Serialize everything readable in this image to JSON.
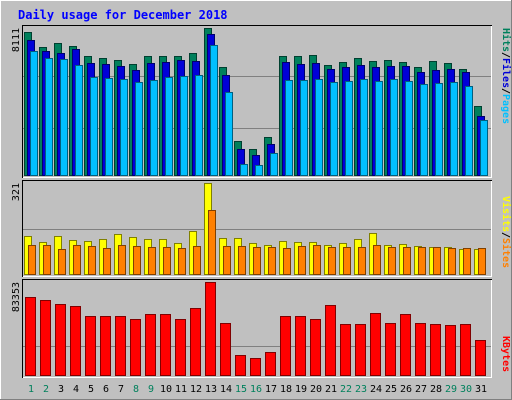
{
  "title": "Daily usage for December 2018",
  "colors": {
    "background": "#c0c0c0",
    "title": "#0000ff",
    "hits": "#00805c",
    "files": "#0000d8",
    "pages": "#00c0ff",
    "visits": "#ffff00",
    "sites": "#ff8000",
    "kbytes": "#ff0000",
    "weekday_label": "#000000",
    "weekend_label": "#00805c"
  },
  "chart_data": [
    {
      "type": "bar",
      "panel": "hits-files-pages",
      "categories": [
        "1",
        "2",
        "3",
        "4",
        "5",
        "6",
        "7",
        "8",
        "9",
        "10",
        "11",
        "12",
        "13",
        "14",
        "15",
        "16",
        "17",
        "18",
        "19",
        "20",
        "21",
        "22",
        "23",
        "24",
        "25",
        "26",
        "27",
        "28",
        "29",
        "30",
        "31"
      ],
      "weekend_days": [
        "1",
        "2",
        "8",
        "9",
        "15",
        "16",
        "22",
        "23",
        "29",
        "30"
      ],
      "ymax_label": "8111",
      "ylim": [
        0,
        8111
      ],
      "series": [
        {
          "name": "Hits",
          "values": [
            7900,
            7050,
            7300,
            7150,
            6600,
            6450,
            6350,
            6150,
            6550,
            6550,
            6600,
            6750,
            8111,
            5950,
            1900,
            1500,
            2150,
            6550,
            6550,
            6650,
            6100,
            6250,
            6450,
            6300,
            6350,
            6250,
            6000,
            6300,
            6200,
            5850,
            3850
          ]
        },
        {
          "name": "Files",
          "values": [
            7450,
            6850,
            6750,
            6950,
            6200,
            6150,
            6050,
            5800,
            6200,
            6250,
            6350,
            6300,
            7800,
            5550,
            1500,
            1150,
            1750,
            6250,
            6150,
            6200,
            5850,
            5950,
            6100,
            5950,
            6050,
            6050,
            5700,
            5800,
            5850,
            5700,
            3300
          ]
        },
        {
          "name": "Pages",
          "values": [
            6850,
            6450,
            6400,
            6100,
            5450,
            5350,
            5300,
            5150,
            5250,
            5400,
            5500,
            5550,
            7200,
            4600,
            650,
            600,
            1250,
            5250,
            5250,
            5300,
            5150,
            5200,
            5300,
            5200,
            5300,
            5200,
            5050,
            5100,
            5150,
            4950,
            3050
          ]
        }
      ]
    },
    {
      "type": "bar",
      "panel": "visits-sites",
      "categories": [
        "1",
        "2",
        "3",
        "4",
        "5",
        "6",
        "7",
        "8",
        "9",
        "10",
        "11",
        "12",
        "13",
        "14",
        "15",
        "16",
        "17",
        "18",
        "19",
        "20",
        "21",
        "22",
        "23",
        "24",
        "25",
        "26",
        "27",
        "28",
        "29",
        "30",
        "31"
      ],
      "ymax_label": "321",
      "ylim": [
        0,
        321
      ],
      "series": [
        {
          "name": "Visits",
          "values": [
            136,
            116,
            136,
            121,
            118,
            126,
            144,
            134,
            125,
            124,
            113,
            154,
            321,
            128,
            128,
            110,
            104,
            118,
            115,
            116,
            106,
            113,
            125,
            146,
            106,
            107,
            100,
            99,
            97,
            91,
            91
          ]
        },
        {
          "name": "Sites",
          "values": [
            104,
            103,
            91,
            103,
            102,
            95,
            105,
            102,
            99,
            99,
            95,
            102,
            226,
            101,
            101,
            98,
            96,
            95,
            102,
            103,
            98,
            96,
            99,
            103,
            96,
            96,
            96,
            97,
            94,
            93,
            95
          ]
        }
      ]
    },
    {
      "type": "bar",
      "panel": "kbytes",
      "categories": [
        "1",
        "2",
        "3",
        "4",
        "5",
        "6",
        "7",
        "8",
        "9",
        "10",
        "11",
        "12",
        "13",
        "14",
        "15",
        "16",
        "17",
        "18",
        "19",
        "20",
        "21",
        "22",
        "23",
        "24",
        "25",
        "26",
        "27",
        "28",
        "29",
        "30",
        "31"
      ],
      "ymax_label": "83353",
      "ylim": [
        0,
        83353
      ],
      "series": [
        {
          "name": "KBytes",
          "values": [
            70000,
            67200,
            63500,
            62000,
            52800,
            53100,
            53500,
            50300,
            55000,
            55300,
            50300,
            60100,
            83353,
            47300,
            18200,
            15600,
            21200,
            52800,
            53200,
            50300,
            62600,
            46100,
            46100,
            56100,
            46700,
            55200,
            46700,
            46100,
            45300,
            46500,
            31700
          ]
        }
      ]
    }
  ]
}
